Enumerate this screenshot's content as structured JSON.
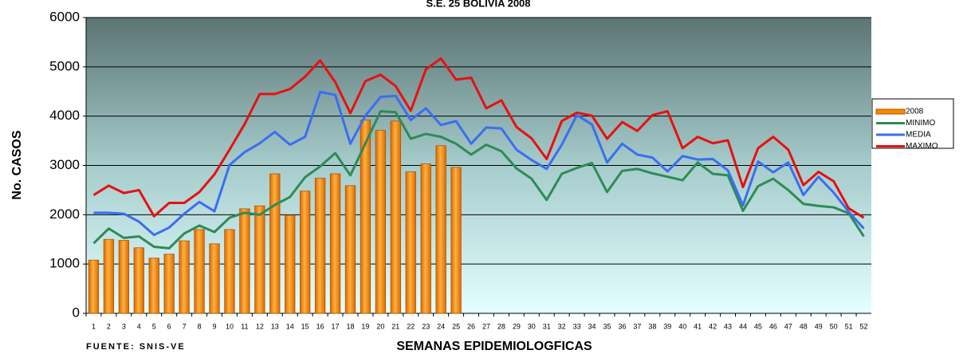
{
  "chart_data": {
    "type": "bar_line",
    "title": "S.E. 25  BOLIVIA 2008",
    "y_label": "No.  CASOS",
    "x_label": "SEMANAS EPIDEMIOLOGFICAS",
    "source": "FUENTE: SNIS-VE",
    "categories": [
      "1",
      "2",
      "3",
      "4",
      "5",
      "6",
      "7",
      "8",
      "9",
      "10",
      "11",
      "12",
      "13",
      "14",
      "15",
      "16",
      "17",
      "18",
      "19",
      "20",
      "21",
      "22",
      "23",
      "24",
      "25",
      "26",
      "27",
      "28",
      "29",
      "30",
      "31",
      "32",
      "33",
      "34",
      "35",
      "36",
      "37",
      "38",
      "39",
      "40",
      "41",
      "42",
      "43",
      "44",
      "45",
      "46",
      "47",
      "48",
      "49",
      "50",
      "51",
      "52"
    ],
    "ylim": [
      0,
      6000
    ],
    "yticks": [
      0,
      1000,
      2000,
      3000,
      4000,
      5000,
      6000
    ],
    "grid": true,
    "legend": "right",
    "series": [
      {
        "name": "2008",
        "type": "bar",
        "color": "#f08a00",
        "values": [
          1080,
          1500,
          1480,
          1330,
          1120,
          1200,
          1470,
          1700,
          1410,
          1700,
          2120,
          2180,
          2830,
          1990,
          2480,
          2740,
          2830,
          2590,
          3920,
          3710,
          3900,
          2870,
          3030,
          3400,
          2960,
          null,
          null,
          null,
          null,
          null,
          null,
          null,
          null,
          null,
          null,
          null,
          null,
          null,
          null,
          null,
          null,
          null,
          null,
          null,
          null,
          null,
          null,
          null,
          null,
          null,
          null,
          null
        ]
      },
      {
        "name": "MINIMO",
        "type": "line",
        "color": "#2e8b57",
        "values": [
          1420,
          1720,
          1530,
          1560,
          1350,
          1320,
          1620,
          1780,
          1650,
          1940,
          2040,
          2000,
          2200,
          2360,
          2760,
          2980,
          3250,
          2800,
          3450,
          4100,
          4080,
          3540,
          3640,
          3580,
          3440,
          3220,
          3420,
          3290,
          2940,
          2730,
          2300,
          2830,
          2950,
          3050,
          2460,
          2890,
          2930,
          2840,
          2770,
          2700,
          3060,
          2830,
          2800,
          2080,
          2580,
          2730,
          2500,
          2220,
          2180,
          2150,
          2030,
          1560
        ]
      },
      {
        "name": "MEDIA",
        "type": "line",
        "color": "#3b6ef0",
        "values": [
          2040,
          2040,
          2020,
          1860,
          1590,
          1740,
          2020,
          2260,
          2070,
          3010,
          3270,
          3450,
          3680,
          3420,
          3580,
          4490,
          4430,
          3440,
          4010,
          4390,
          4410,
          3920,
          4160,
          3820,
          3900,
          3440,
          3770,
          3750,
          3320,
          3110,
          2930,
          3420,
          4020,
          3830,
          3060,
          3440,
          3220,
          3160,
          2880,
          3190,
          3120,
          3130,
          2900,
          2190,
          3080,
          2860,
          3060,
          2400,
          2770,
          2450,
          2060,
          1720
        ]
      },
      {
        "name": "MAXIMO",
        "type": "line",
        "color": "#e81010",
        "values": [
          2400,
          2590,
          2440,
          2500,
          1970,
          2240,
          2240,
          2460,
          2820,
          3320,
          3840,
          4450,
          4450,
          4550,
          4800,
          5130,
          4690,
          4060,
          4710,
          4840,
          4610,
          4110,
          4950,
          5170,
          4740,
          4780,
          4160,
          4320,
          3780,
          3550,
          3130,
          3900,
          4070,
          4010,
          3540,
          3880,
          3700,
          4020,
          4100,
          3350,
          3580,
          3450,
          3510,
          2560,
          3350,
          3580,
          3320,
          2600,
          2870,
          2680,
          2130,
          1940
        ]
      }
    ]
  }
}
